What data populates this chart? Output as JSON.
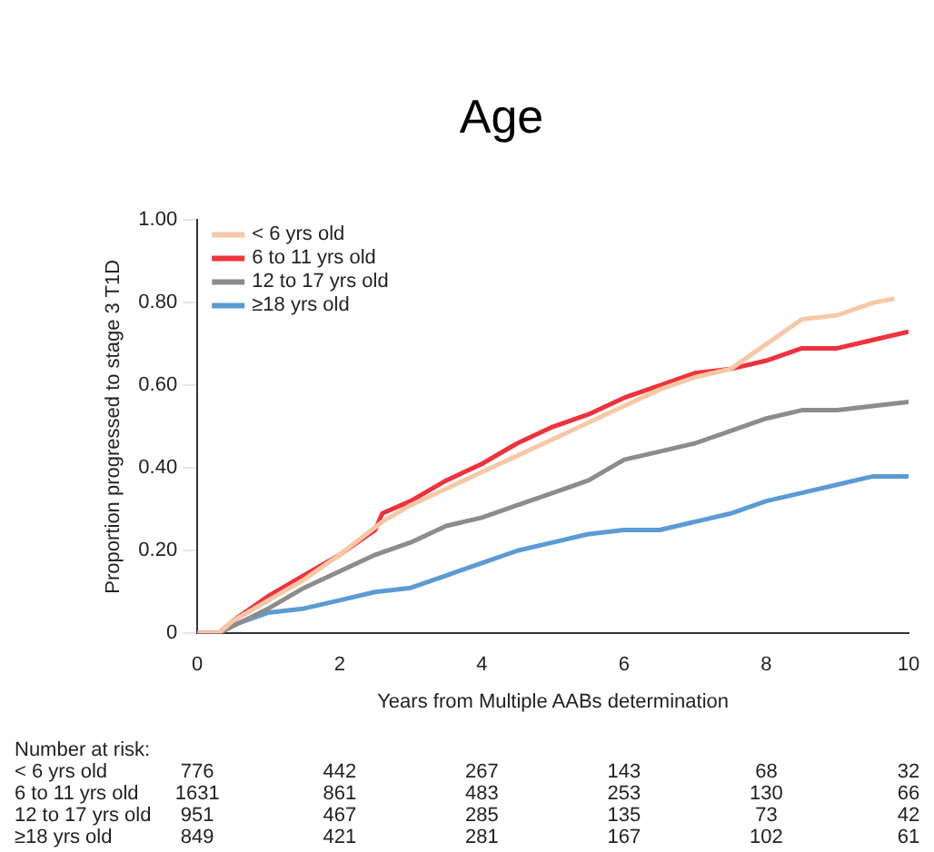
{
  "chart_data": {
    "type": "line",
    "title": "Age",
    "xlabel": "Years from Multiple AABs determination",
    "ylabel": "Proportion progressed to stage 3 T1D",
    "xlim": [
      0,
      10
    ],
    "xticks": [
      0,
      2,
      4,
      6,
      8,
      10
    ],
    "ylim": [
      0,
      1
    ],
    "yticks": [
      0,
      {
        "value": 0.2,
        "label": "0.20"
      },
      {
        "value": 0.4,
        "label": "0.40"
      },
      {
        "value": 0.6,
        "label": "0.60"
      },
      {
        "value": 0.8,
        "label": "0.80"
      },
      {
        "value": 1,
        "label": "1.00"
      }
    ],
    "grid": false,
    "legend": "top left",
    "marker": "none",
    "line_style": "solid",
    "series": [
      {
        "name": "< 6 yrs old",
        "color": "#f6c8a6",
        "x": [
          0,
          0.3,
          0.5,
          1,
          1.5,
          2,
          2.6,
          3,
          3.5,
          4,
          4.5,
          5,
          5.5,
          6,
          6.5,
          7,
          7.5,
          8,
          8.5,
          9,
          9.5,
          9.8
        ],
        "values": [
          0,
          0,
          0.03,
          0.08,
          0.13,
          0.19,
          0.27,
          0.31,
          0.35,
          0.39,
          0.43,
          0.47,
          0.51,
          0.55,
          0.59,
          0.62,
          0.64,
          0.7,
          0.76,
          0.77,
          0.8,
          0.81
        ]
      },
      {
        "name": "6 to 11 yrs old",
        "color": "#f0323c",
        "x": [
          0,
          0.3,
          0.5,
          1,
          1.5,
          2,
          2.5,
          2.6,
          3,
          3.5,
          4,
          4.5,
          5,
          5.5,
          6,
          6.5,
          7,
          7.5,
          8,
          8.5,
          9,
          9.5,
          10
        ],
        "values": [
          0,
          0,
          0.03,
          0.09,
          0.14,
          0.19,
          0.25,
          0.29,
          0.32,
          0.37,
          0.41,
          0.46,
          0.5,
          0.53,
          0.57,
          0.6,
          0.63,
          0.64,
          0.66,
          0.69,
          0.69,
          0.71,
          0.73
        ]
      },
      {
        "name": "12 to 17 yrs old",
        "color": "#8c8c8c",
        "x": [
          0,
          0.3,
          1,
          1.5,
          2,
          2.5,
          3,
          3.5,
          4,
          4.5,
          5,
          5.5,
          6,
          6.5,
          7,
          7.5,
          8,
          8.5,
          9,
          9.5,
          10
        ],
        "values": [
          0,
          0,
          0.06,
          0.11,
          0.15,
          0.19,
          0.22,
          0.26,
          0.28,
          0.31,
          0.34,
          0.37,
          0.42,
          0.44,
          0.46,
          0.49,
          0.52,
          0.54,
          0.54,
          0.55,
          0.56
        ]
      },
      {
        "name": "≥18 yrs old",
        "color": "#5b9bd5",
        "x": [
          0,
          0.3,
          0.5,
          1,
          1.5,
          2,
          2.5,
          3,
          3.5,
          4,
          4.5,
          5,
          5.5,
          6,
          6.5,
          7,
          7.5,
          8,
          8.5,
          9,
          9.5,
          10
        ],
        "values": [
          0,
          0,
          0.02,
          0.05,
          0.06,
          0.08,
          0.1,
          0.11,
          0.14,
          0.17,
          0.2,
          0.22,
          0.24,
          0.25,
          0.25,
          0.27,
          0.29,
          0.32,
          0.34,
          0.36,
          0.38,
          0.38
        ]
      }
    ],
    "annotations": [
      "Number at risk:",
      "< 6 yrs old",
      "776",
      "442",
      "267",
      "143",
      "68",
      "32",
      "6 to 11 yrs old",
      "1631",
      "861",
      "483",
      "253",
      "130",
      "66",
      "12 to 17 yrs old",
      "951",
      "467",
      "285",
      "135",
      "73",
      "42",
      "≥18 yrs old",
      "849",
      "421",
      "281",
      "167",
      "102",
      "61"
    ]
  }
}
